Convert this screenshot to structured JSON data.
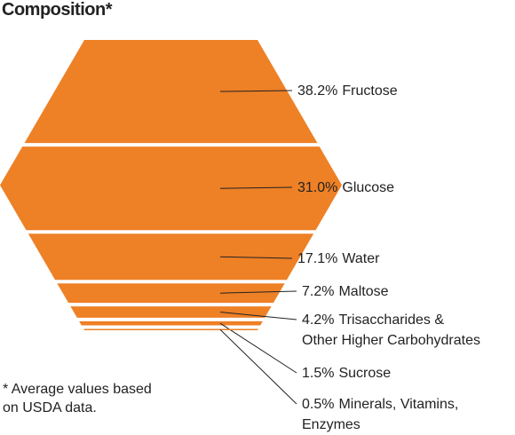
{
  "chart_data": {
    "type": "hexagon-slices",
    "title": "Composition*",
    "categories": [
      "Fructose",
      "Glucose",
      "Water",
      "Maltose",
      "Trisaccharides &\nOther Higher Carbohydrates",
      "Sucrose",
      "Minerals, Vitamins,\nEnzymes"
    ],
    "values": [
      38.2,
      31.0,
      17.1,
      7.2,
      4.2,
      1.5,
      0.5
    ],
    "value_labels": [
      "38.2%",
      "31.0%",
      "17.1%",
      "7.2%",
      "4.2%",
      "1.5%",
      "0.5%"
    ],
    "color": "#ee8026",
    "note": "* Average values based\non USDA data."
  }
}
